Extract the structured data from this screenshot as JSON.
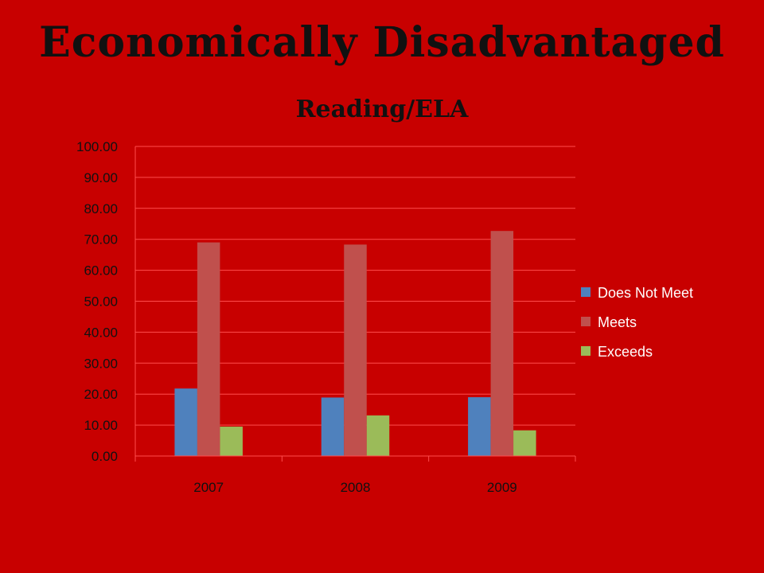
{
  "slide": {
    "title": "Economically Disadvantaged",
    "subtitle": "Reading/ELA"
  },
  "colors": {
    "background": "#c80000",
    "grid": "#ff4d4d",
    "axis_text": "#111111",
    "legend_text": "#ffffff"
  },
  "chart_data": {
    "type": "bar",
    "categories": [
      "2007",
      "2008",
      "2009"
    ],
    "series": [
      {
        "name": "Does Not Meet",
        "color": "#4f81bd",
        "values": [
          21.8,
          18.9,
          19.0
        ]
      },
      {
        "name": "Meets",
        "color": "#c0504d",
        "values": [
          69.0,
          68.3,
          72.7
        ]
      },
      {
        "name": "Exceeds",
        "color": "#9bbb59",
        "values": [
          9.5,
          13.1,
          8.3
        ]
      }
    ],
    "ylim": [
      0,
      100
    ],
    "yticks": [
      "0.00",
      "10.00",
      "20.00",
      "30.00",
      "40.00",
      "50.00",
      "60.00",
      "70.00",
      "80.00",
      "90.00",
      "100.00"
    ],
    "grid": true,
    "legend_position": "right"
  }
}
